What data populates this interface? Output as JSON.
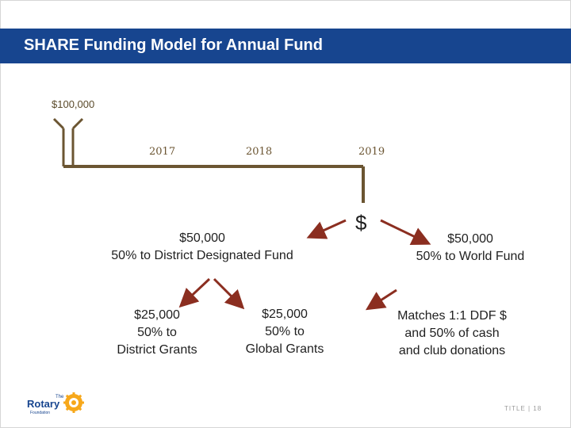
{
  "title": "SHARE Funding Model for Annual Fund",
  "top_amount": "$100,000",
  "years": [
    "2017",
    "2018",
    "2019"
  ],
  "dollar_sign": "$",
  "ddf": {
    "amount": "$50,000",
    "label": "50% to District Designated Fund"
  },
  "world_fund": {
    "amount": "$50,000",
    "label": "50% to World Fund"
  },
  "district_grants": {
    "amount": "$25,000",
    "line1": "50% to",
    "line2": "District Grants"
  },
  "global_grants": {
    "amount": "$25,000",
    "line1": "50% to",
    "line2": "Global Grants"
  },
  "matches": {
    "line1": "Matches 1:1 DDF $",
    "line2": "and 50% of cash",
    "line3": "and club donations"
  },
  "logo": {
    "the": "The",
    "rotary": "Rotary",
    "foundation": "Foundation"
  },
  "footer": "TITLE | 18",
  "colors": {
    "title_bar": "#17458f",
    "line": "#6b5532",
    "arrow": "#8b2e20"
  }
}
